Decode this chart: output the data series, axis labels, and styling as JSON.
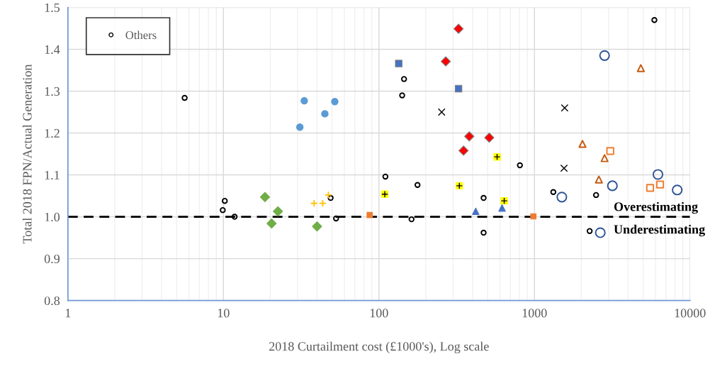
{
  "chart_data": {
    "type": "scatter",
    "xlabel": "2018 Curtailment cost (£1000's), Log scale",
    "ylabel": "Total 2018 FPN/Actual Generation",
    "log": "x",
    "xlim": [
      1,
      10000
    ],
    "xticks": [
      1,
      10,
      100,
      1000,
      10000
    ],
    "ylim": [
      0.8,
      1.5
    ],
    "yticks": [
      {
        "value": 0.8,
        "label": "0.8"
      },
      {
        "value": 0.9,
        "label": "0.9"
      },
      {
        "value": 1.0,
        "label": "1.0"
      },
      {
        "value": 1.1,
        "label": "1.1"
      },
      {
        "value": 1.2,
        "label": "1.2"
      },
      {
        "value": 1.3,
        "label": "1.3"
      },
      {
        "value": 1.4,
        "label": "1.4"
      },
      {
        "value": 1.5,
        "label": "1.5"
      }
    ],
    "grid": true,
    "legend": "top left",
    "ref_lines": [
      {
        "axis": "y",
        "value": 1.0,
        "color": "#000000",
        "line_style": "dashed"
      }
    ],
    "annotations": [
      "Overestimating",
      "Underestimating"
    ],
    "series": [
      {
        "name": "Others",
        "color": "#000000",
        "marker": "circle",
        "x": [
          5.63,
          10.2,
          9.9,
          11.8,
          48.9,
          53,
          145,
          141,
          110,
          177,
          162,
          471,
          471,
          806,
          1322,
          2490,
          2264,
          5904
        ],
        "values": [
          1.284,
          1.038,
          1.016,
          1.0,
          1.045,
          0.996,
          1.329,
          1.29,
          1.096,
          1.076,
          0.994,
          1.045,
          0.962,
          1.123,
          1.059,
          1.052,
          0.966,
          1.47
        ]
      },
      {
        "color": "#5b9bd5",
        "marker": "circle",
        "x": [
          31,
          33.1,
          44.9,
          52
        ],
        "values": [
          1.214,
          1.277,
          1.246,
          1.275
        ]
      },
      {
        "color": "#70ad47",
        "marker": "diamond",
        "x": [
          18.5,
          22.4,
          20.4,
          40
        ],
        "values": [
          1.047,
          1.013,
          0.984,
          0.977
        ]
      },
      {
        "color": "#ffc000",
        "marker": "plus",
        "x": [
          38.3,
          43.5,
          47.3
        ],
        "values": [
          1.032,
          1.032,
          1.052
        ]
      },
      {
        "color": "#ed7d31",
        "marker": "square",
        "x": [
          87.2,
          984
        ],
        "values": [
          1.004,
          1.001
        ]
      },
      {
        "color": "#ffff00",
        "marker": "square_plus",
        "x": [
          109,
          575,
          329,
          639
        ],
        "values": [
          1.054,
          1.143,
          1.074,
          1.038
        ]
      },
      {
        "color": "#4472c4",
        "marker": "square",
        "x": [
          134,
          325
        ],
        "values": [
          1.366,
          1.306
        ]
      },
      {
        "color": "#ff0000",
        "marker": "diamond",
        "x": [
          325,
          269,
          381,
          512,
          350
        ],
        "values": [
          1.449,
          1.371,
          1.192,
          1.189,
          1.158
        ]
      },
      {
        "color": "#000000",
        "marker": "cross",
        "x": [
          253,
          1564,
          1550
        ],
        "values": [
          1.25,
          1.26,
          1.116
        ]
      },
      {
        "color": "#4472c4",
        "marker": "triangle",
        "x": [
          419,
          619
        ],
        "values": [
          1.013,
          1.021
        ]
      },
      {
        "color": "#c55a11",
        "marker": "triangle",
        "x": [
          4831,
          2036,
          2824,
          2596
        ],
        "values": [
          1.355,
          1.174,
          1.14,
          1.089
        ]
      },
      {
        "color": "#ed7d31",
        "marker": "square",
        "x": [
          3072,
          5542,
          6424
        ],
        "values": [
          1.157,
          1.069,
          1.077
        ]
      },
      {
        "color": "#2f5597",
        "marker": "circle",
        "x": [
          2824,
          1500,
          3171,
          6222,
          8276,
          2650
        ],
        "values": [
          1.385,
          1.047,
          1.074,
          1.101,
          1.064,
          0.962
        ]
      }
    ]
  }
}
